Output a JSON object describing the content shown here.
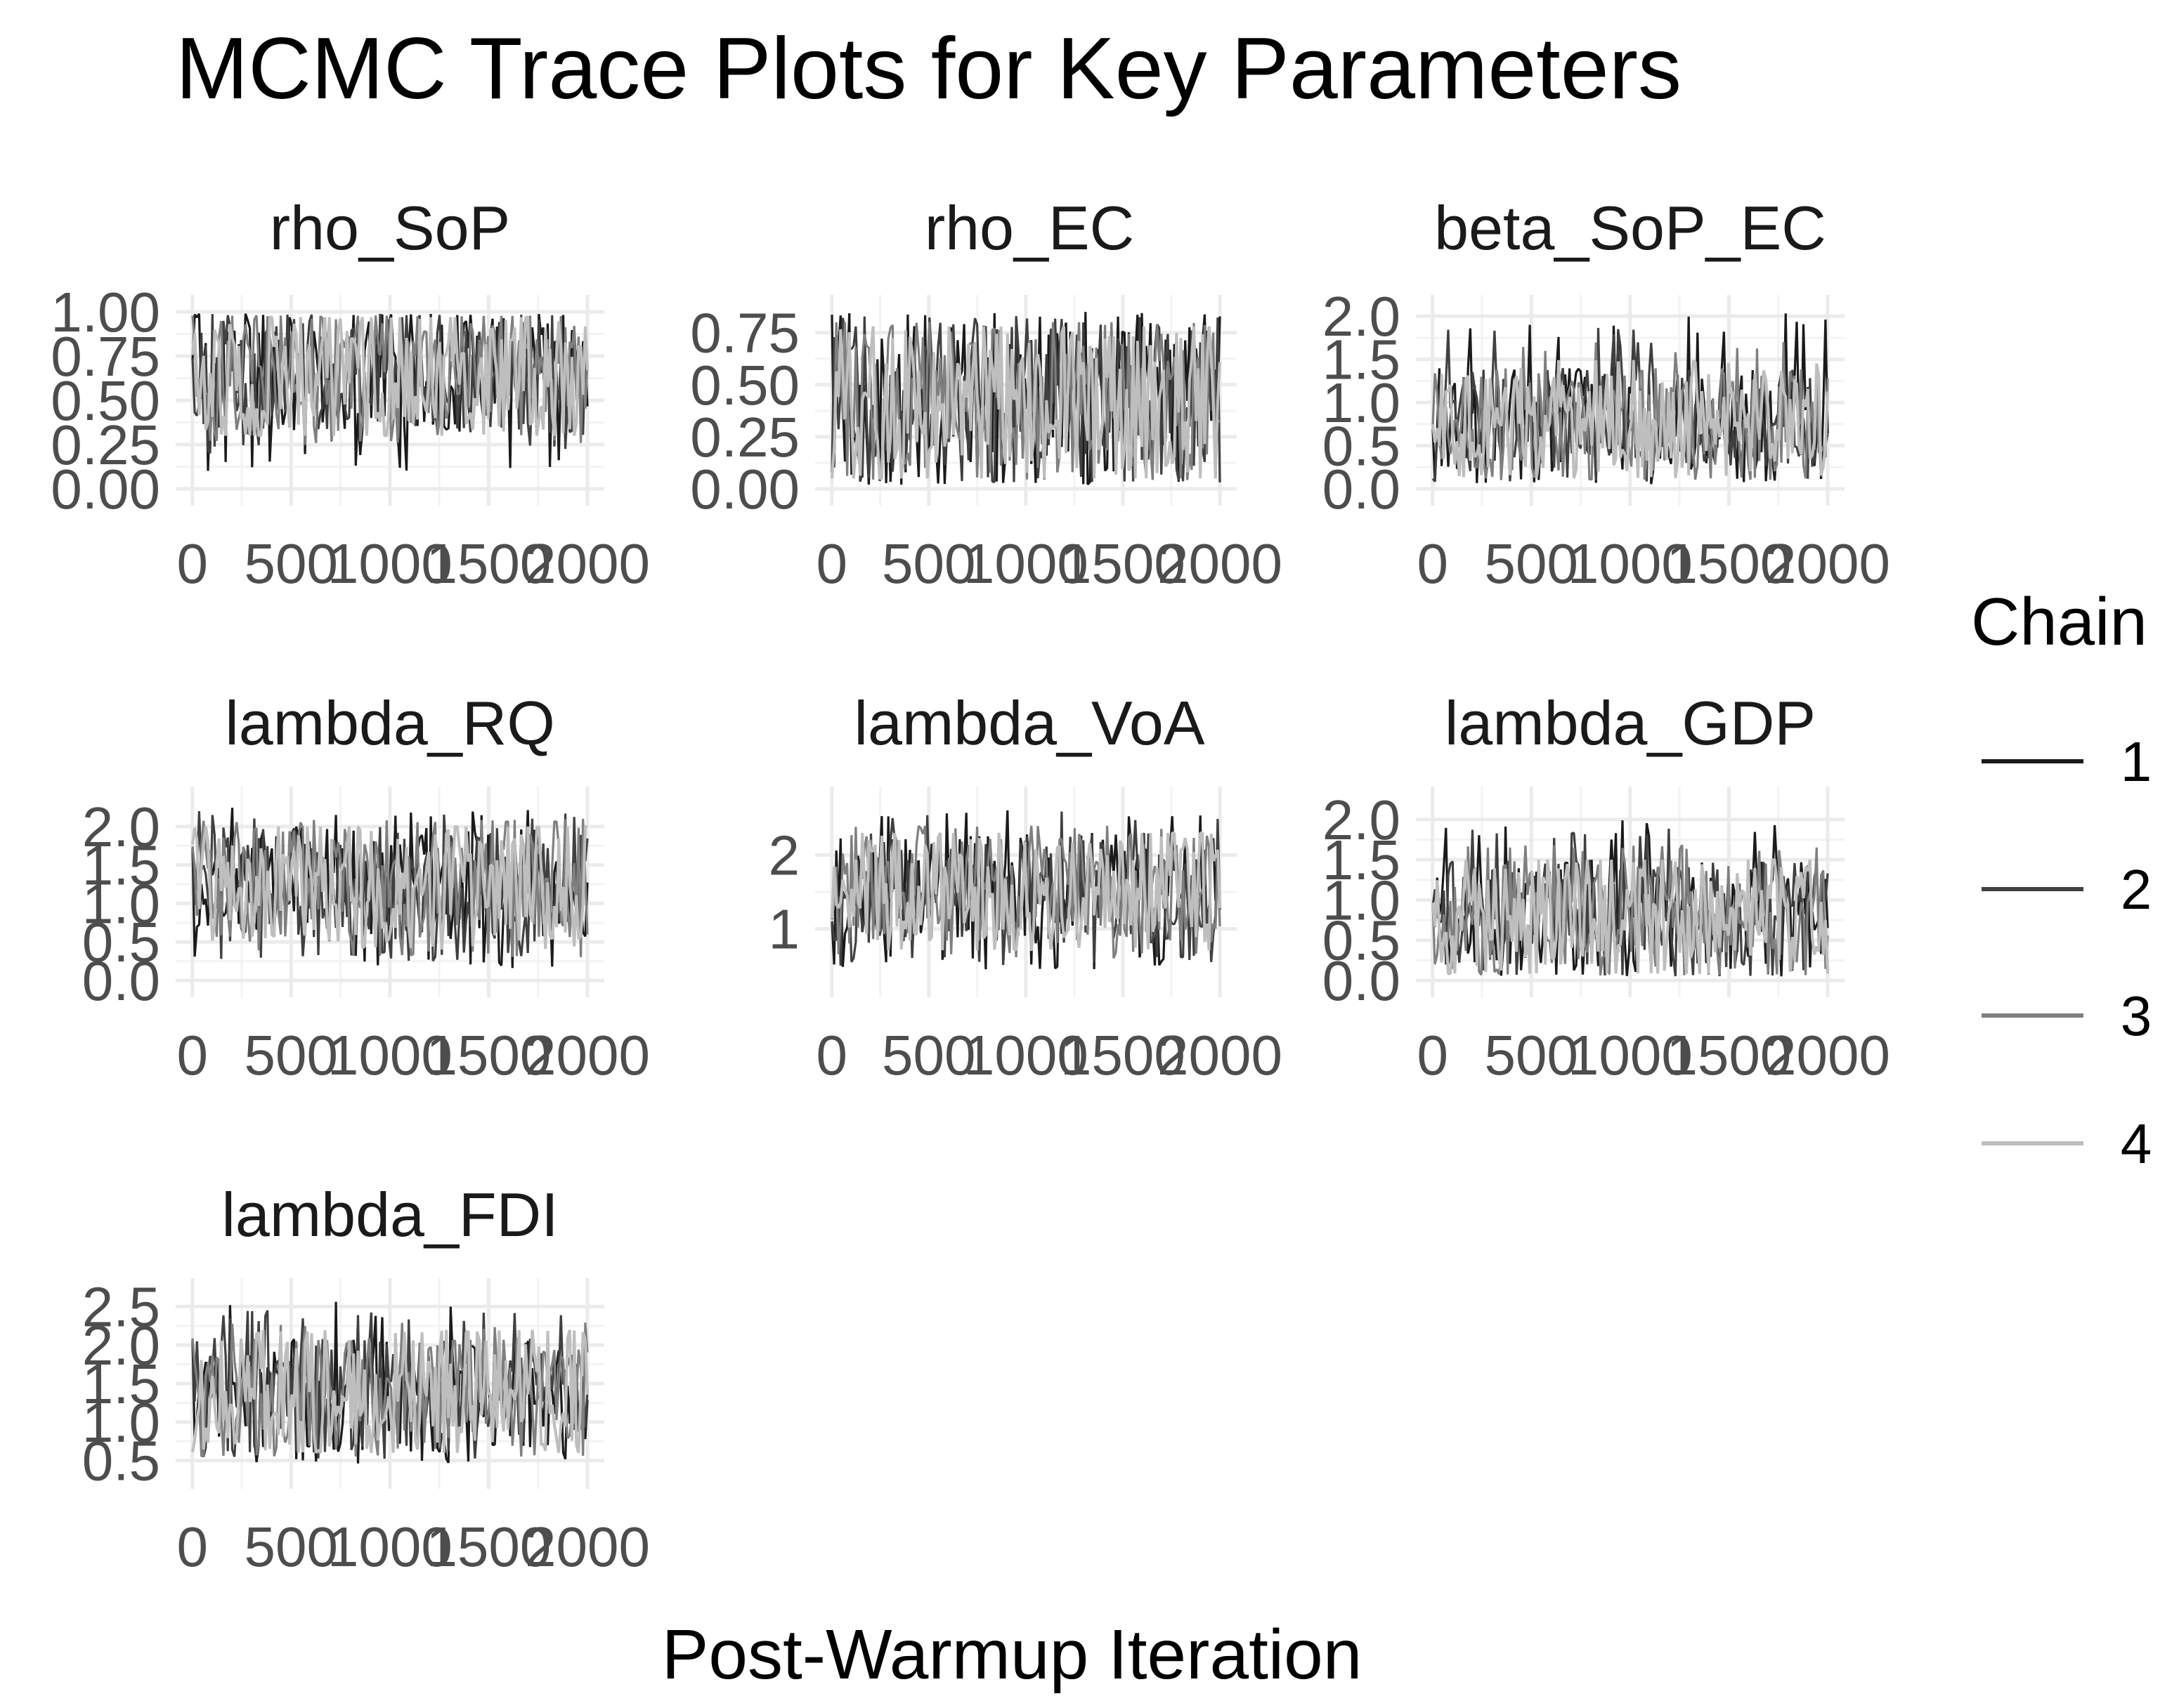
{
  "chart_data": {
    "type": "line",
    "title": "MCMC Trace Plots for Key Parameters",
    "xlabel": "Post-Warmup Iteration",
    "ylabel": "",
    "x_range": [
      1,
      2000
    ],
    "x_ticks": [
      0,
      500,
      1000,
      1500,
      2000
    ],
    "x_tick_labels": [
      "0",
      "500",
      "1000",
      "1500",
      "2000"
    ],
    "grid": true,
    "legend": {
      "title": "Chain",
      "position": "right",
      "entries": [
        {
          "label": "1",
          "color": "#1a1a1a"
        },
        {
          "label": "2",
          "color": "#404040"
        },
        {
          "label": "3",
          "color": "#7f7f7f"
        },
        {
          "label": "4",
          "color": "#bebebe"
        }
      ]
    },
    "panels": [
      {
        "name": "rho_SoP",
        "ylim": [
          0.0,
          1.0
        ],
        "y_ticks": [
          0.0,
          0.25,
          0.5,
          0.75,
          1.0
        ],
        "y_tick_labels": [
          "0.00",
          "0.25",
          "0.50",
          "0.75",
          "1.00"
        ],
        "band": {
          "mean": 0.82,
          "low": 0.3,
          "high": 0.97
        },
        "series": [
          {
            "chain": "1",
            "min": 0.1,
            "max": 0.99
          },
          {
            "chain": "2",
            "min": 0.2,
            "max": 0.99
          },
          {
            "chain": "3",
            "min": 0.25,
            "max": 0.98
          },
          {
            "chain": "4",
            "min": 0.3,
            "max": 0.97
          }
        ]
      },
      {
        "name": "rho_EC",
        "ylim": [
          0.0,
          0.85
        ],
        "y_ticks": [
          0.0,
          0.25,
          0.5,
          0.75
        ],
        "y_tick_labels": [
          "0.00",
          "0.25",
          "0.50",
          "0.75"
        ],
        "band": {
          "mean": 0.45,
          "low": 0.05,
          "high": 0.8
        },
        "series": [
          {
            "chain": "1",
            "min": 0.02,
            "max": 0.85
          },
          {
            "chain": "2",
            "min": 0.03,
            "max": 0.83
          },
          {
            "chain": "3",
            "min": 0.04,
            "max": 0.8
          },
          {
            "chain": "4",
            "min": 0.05,
            "max": 0.78
          }
        ]
      },
      {
        "name": "beta_SoP_EC",
        "ylim": [
          0.0,
          2.05
        ],
        "y_ticks": [
          0.0,
          0.5,
          1.0,
          1.5,
          2.0
        ],
        "y_tick_labels": [
          "0.0",
          "0.5",
          "1.0",
          "1.5",
          "2.0"
        ],
        "band": {
          "mean": 0.8,
          "low": 0.2,
          "high": 1.4
        },
        "series": [
          {
            "chain": "1",
            "min": 0.05,
            "max": 2.05
          },
          {
            "chain": "2",
            "min": 0.08,
            "max": 1.9
          },
          {
            "chain": "3",
            "min": 0.1,
            "max": 1.7
          },
          {
            "chain": "4",
            "min": 0.12,
            "max": 1.5
          }
        ]
      },
      {
        "name": "lambda_RQ",
        "ylim": [
          0.0,
          2.3
        ],
        "y_ticks": [
          0.0,
          0.5,
          1.0,
          1.5,
          2.0
        ],
        "y_tick_labels": [
          "0.0",
          "0.5",
          "1.0",
          "1.5",
          "2.0"
        ],
        "band": {
          "mean": 1.2,
          "low": 0.5,
          "high": 2.0
        },
        "series": [
          {
            "chain": "1",
            "min": 0.15,
            "max": 2.25
          },
          {
            "chain": "2",
            "min": 0.25,
            "max": 2.2
          },
          {
            "chain": "3",
            "min": 0.3,
            "max": 2.1
          },
          {
            "chain": "4",
            "min": 0.4,
            "max": 2.0
          }
        ]
      },
      {
        "name": "lambda_VoA",
        "ylim": [
          0.3,
          2.7
        ],
        "y_ticks": [
          1,
          2
        ],
        "y_tick_labels": [
          "1",
          "2"
        ],
        "band": {
          "mean": 1.5,
          "low": 0.8,
          "high": 2.3
        },
        "series": [
          {
            "chain": "1",
            "min": 0.45,
            "max": 2.7
          },
          {
            "chain": "2",
            "min": 0.5,
            "max": 2.6
          },
          {
            "chain": "3",
            "min": 0.6,
            "max": 2.4
          },
          {
            "chain": "4",
            "min": 0.7,
            "max": 2.3
          }
        ]
      },
      {
        "name": "lambda_GDP",
        "ylim": [
          0.0,
          2.2
        ],
        "y_ticks": [
          0.0,
          0.5,
          1.0,
          1.5,
          2.0
        ],
        "y_tick_labels": [
          "0.0",
          "0.5",
          "1.0",
          "1.5",
          "2.0"
        ],
        "band": {
          "mean": 0.75,
          "low": 0.1,
          "high": 1.5
        },
        "series": [
          {
            "chain": "1",
            "min": 0.05,
            "max": 2.0
          },
          {
            "chain": "2",
            "min": 0.05,
            "max": 1.9
          },
          {
            "chain": "3",
            "min": 0.06,
            "max": 1.7
          },
          {
            "chain": "4",
            "min": 0.08,
            "max": 1.5
          }
        ]
      },
      {
        "name": "lambda_FDI",
        "ylim": [
          0.35,
          2.65
        ],
        "y_ticks": [
          0.5,
          1.0,
          1.5,
          2.0,
          2.5
        ],
        "y_tick_labels": [
          "0.5",
          "1.0",
          "1.5",
          "2.0",
          "2.5"
        ],
        "band": {
          "mean": 1.35,
          "low": 0.6,
          "high": 2.1
        },
        "series": [
          {
            "chain": "1",
            "min": 0.45,
            "max": 2.6
          },
          {
            "chain": "2",
            "min": 0.5,
            "max": 2.45
          },
          {
            "chain": "3",
            "min": 0.55,
            "max": 2.3
          },
          {
            "chain": "4",
            "min": 0.6,
            "max": 2.2
          }
        ]
      }
    ]
  }
}
